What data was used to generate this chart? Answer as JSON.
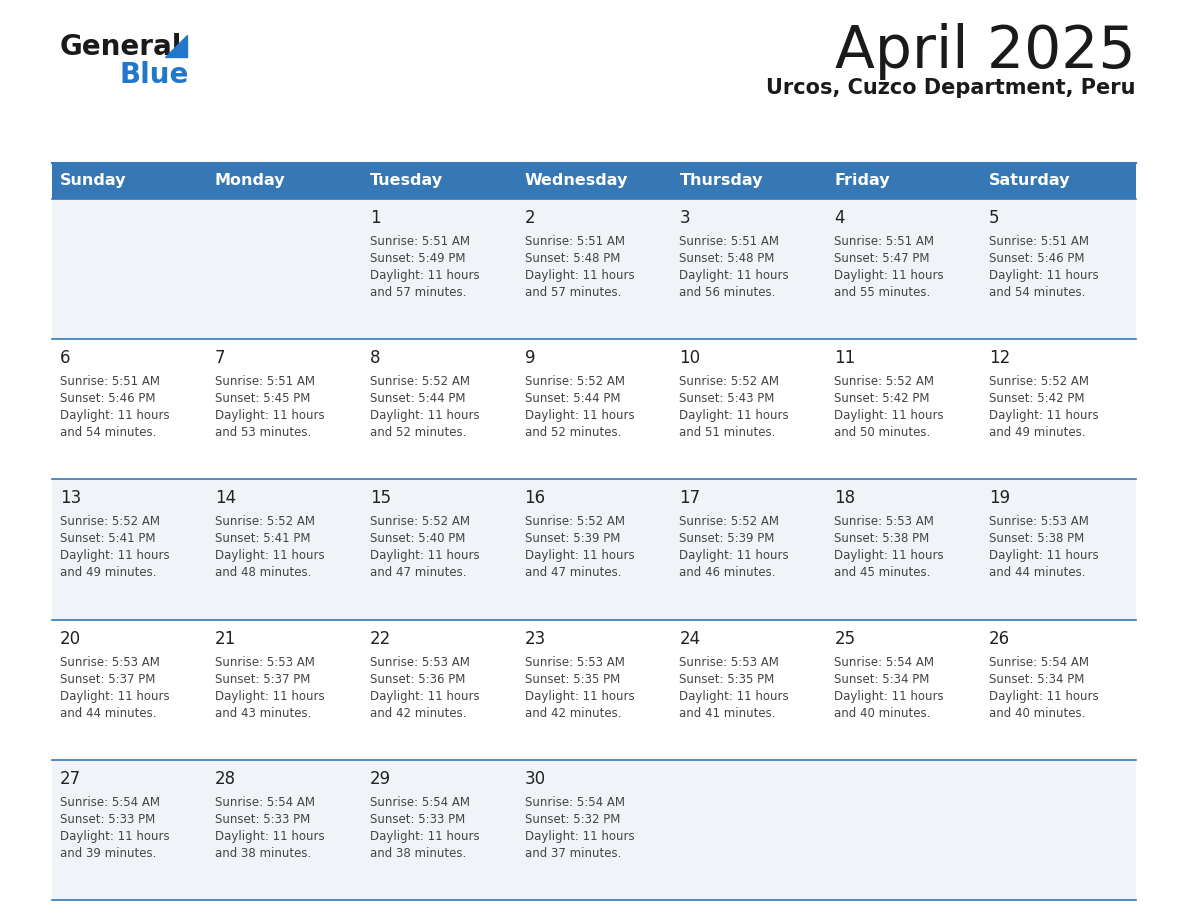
{
  "title": "April 2025",
  "subtitle": "Urcos, Cuzco Department, Peru",
  "header_bg_color": "#3578b5",
  "header_text_color": "#ffffff",
  "day_names": [
    "Sunday",
    "Monday",
    "Tuesday",
    "Wednesday",
    "Thursday",
    "Friday",
    "Saturday"
  ],
  "row_bg_colors": [
    "#f0f4f8",
    "#ffffff",
    "#f0f4f8",
    "#ffffff",
    "#f0f4f8"
  ],
  "grid_line_color": "#3578b5",
  "day_num_color": "#222222",
  "cell_text_color": "#444444",
  "title_color": "#1a1a1a",
  "subtitle_color": "#1a1a1a",
  "logo_general_color": "#1a1a1a",
  "logo_blue_color": "#2277cc",
  "weeks": [
    [
      {
        "day": 0,
        "date": "",
        "sunrise": "",
        "sunset": "",
        "daylight": ""
      },
      {
        "day": 1,
        "date": "",
        "sunrise": "",
        "sunset": "",
        "daylight": ""
      },
      {
        "day": 2,
        "date": "1",
        "sunrise": "5:51 AM",
        "sunset": "5:49 PM",
        "daylight": "11 hours and 57 minutes."
      },
      {
        "day": 3,
        "date": "2",
        "sunrise": "5:51 AM",
        "sunset": "5:48 PM",
        "daylight": "11 hours and 57 minutes."
      },
      {
        "day": 4,
        "date": "3",
        "sunrise": "5:51 AM",
        "sunset": "5:48 PM",
        "daylight": "11 hours and 56 minutes."
      },
      {
        "day": 5,
        "date": "4",
        "sunrise": "5:51 AM",
        "sunset": "5:47 PM",
        "daylight": "11 hours and 55 minutes."
      },
      {
        "day": 6,
        "date": "5",
        "sunrise": "5:51 AM",
        "sunset": "5:46 PM",
        "daylight": "11 hours and 54 minutes."
      }
    ],
    [
      {
        "day": 0,
        "date": "6",
        "sunrise": "5:51 AM",
        "sunset": "5:46 PM",
        "daylight": "11 hours and 54 minutes."
      },
      {
        "day": 1,
        "date": "7",
        "sunrise": "5:51 AM",
        "sunset": "5:45 PM",
        "daylight": "11 hours and 53 minutes."
      },
      {
        "day": 2,
        "date": "8",
        "sunrise": "5:52 AM",
        "sunset": "5:44 PM",
        "daylight": "11 hours and 52 minutes."
      },
      {
        "day": 3,
        "date": "9",
        "sunrise": "5:52 AM",
        "sunset": "5:44 PM",
        "daylight": "11 hours and 52 minutes."
      },
      {
        "day": 4,
        "date": "10",
        "sunrise": "5:52 AM",
        "sunset": "5:43 PM",
        "daylight": "11 hours and 51 minutes."
      },
      {
        "day": 5,
        "date": "11",
        "sunrise": "5:52 AM",
        "sunset": "5:42 PM",
        "daylight": "11 hours and 50 minutes."
      },
      {
        "day": 6,
        "date": "12",
        "sunrise": "5:52 AM",
        "sunset": "5:42 PM",
        "daylight": "11 hours and 49 minutes."
      }
    ],
    [
      {
        "day": 0,
        "date": "13",
        "sunrise": "5:52 AM",
        "sunset": "5:41 PM",
        "daylight": "11 hours and 49 minutes."
      },
      {
        "day": 1,
        "date": "14",
        "sunrise": "5:52 AM",
        "sunset": "5:41 PM",
        "daylight": "11 hours and 48 minutes."
      },
      {
        "day": 2,
        "date": "15",
        "sunrise": "5:52 AM",
        "sunset": "5:40 PM",
        "daylight": "11 hours and 47 minutes."
      },
      {
        "day": 3,
        "date": "16",
        "sunrise": "5:52 AM",
        "sunset": "5:39 PM",
        "daylight": "11 hours and 47 minutes."
      },
      {
        "day": 4,
        "date": "17",
        "sunrise": "5:52 AM",
        "sunset": "5:39 PM",
        "daylight": "11 hours and 46 minutes."
      },
      {
        "day": 5,
        "date": "18",
        "sunrise": "5:53 AM",
        "sunset": "5:38 PM",
        "daylight": "11 hours and 45 minutes."
      },
      {
        "day": 6,
        "date": "19",
        "sunrise": "5:53 AM",
        "sunset": "5:38 PM",
        "daylight": "11 hours and 44 minutes."
      }
    ],
    [
      {
        "day": 0,
        "date": "20",
        "sunrise": "5:53 AM",
        "sunset": "5:37 PM",
        "daylight": "11 hours and 44 minutes."
      },
      {
        "day": 1,
        "date": "21",
        "sunrise": "5:53 AM",
        "sunset": "5:37 PM",
        "daylight": "11 hours and 43 minutes."
      },
      {
        "day": 2,
        "date": "22",
        "sunrise": "5:53 AM",
        "sunset": "5:36 PM",
        "daylight": "11 hours and 42 minutes."
      },
      {
        "day": 3,
        "date": "23",
        "sunrise": "5:53 AM",
        "sunset": "5:35 PM",
        "daylight": "11 hours and 42 minutes."
      },
      {
        "day": 4,
        "date": "24",
        "sunrise": "5:53 AM",
        "sunset": "5:35 PM",
        "daylight": "11 hours and 41 minutes."
      },
      {
        "day": 5,
        "date": "25",
        "sunrise": "5:54 AM",
        "sunset": "5:34 PM",
        "daylight": "11 hours and 40 minutes."
      },
      {
        "day": 6,
        "date": "26",
        "sunrise": "5:54 AM",
        "sunset": "5:34 PM",
        "daylight": "11 hours and 40 minutes."
      }
    ],
    [
      {
        "day": 0,
        "date": "27",
        "sunrise": "5:54 AM",
        "sunset": "5:33 PM",
        "daylight": "11 hours and 39 minutes."
      },
      {
        "day": 1,
        "date": "28",
        "sunrise": "5:54 AM",
        "sunset": "5:33 PM",
        "daylight": "11 hours and 38 minutes."
      },
      {
        "day": 2,
        "date": "29",
        "sunrise": "5:54 AM",
        "sunset": "5:33 PM",
        "daylight": "11 hours and 38 minutes."
      },
      {
        "day": 3,
        "date": "30",
        "sunrise": "5:54 AM",
        "sunset": "5:32 PM",
        "daylight": "11 hours and 37 minutes."
      },
      {
        "day": 4,
        "date": "",
        "sunrise": "",
        "sunset": "",
        "daylight": ""
      },
      {
        "day": 5,
        "date": "",
        "sunrise": "",
        "sunset": "",
        "daylight": ""
      },
      {
        "day": 6,
        "date": "",
        "sunrise": "",
        "sunset": "",
        "daylight": ""
      }
    ]
  ]
}
